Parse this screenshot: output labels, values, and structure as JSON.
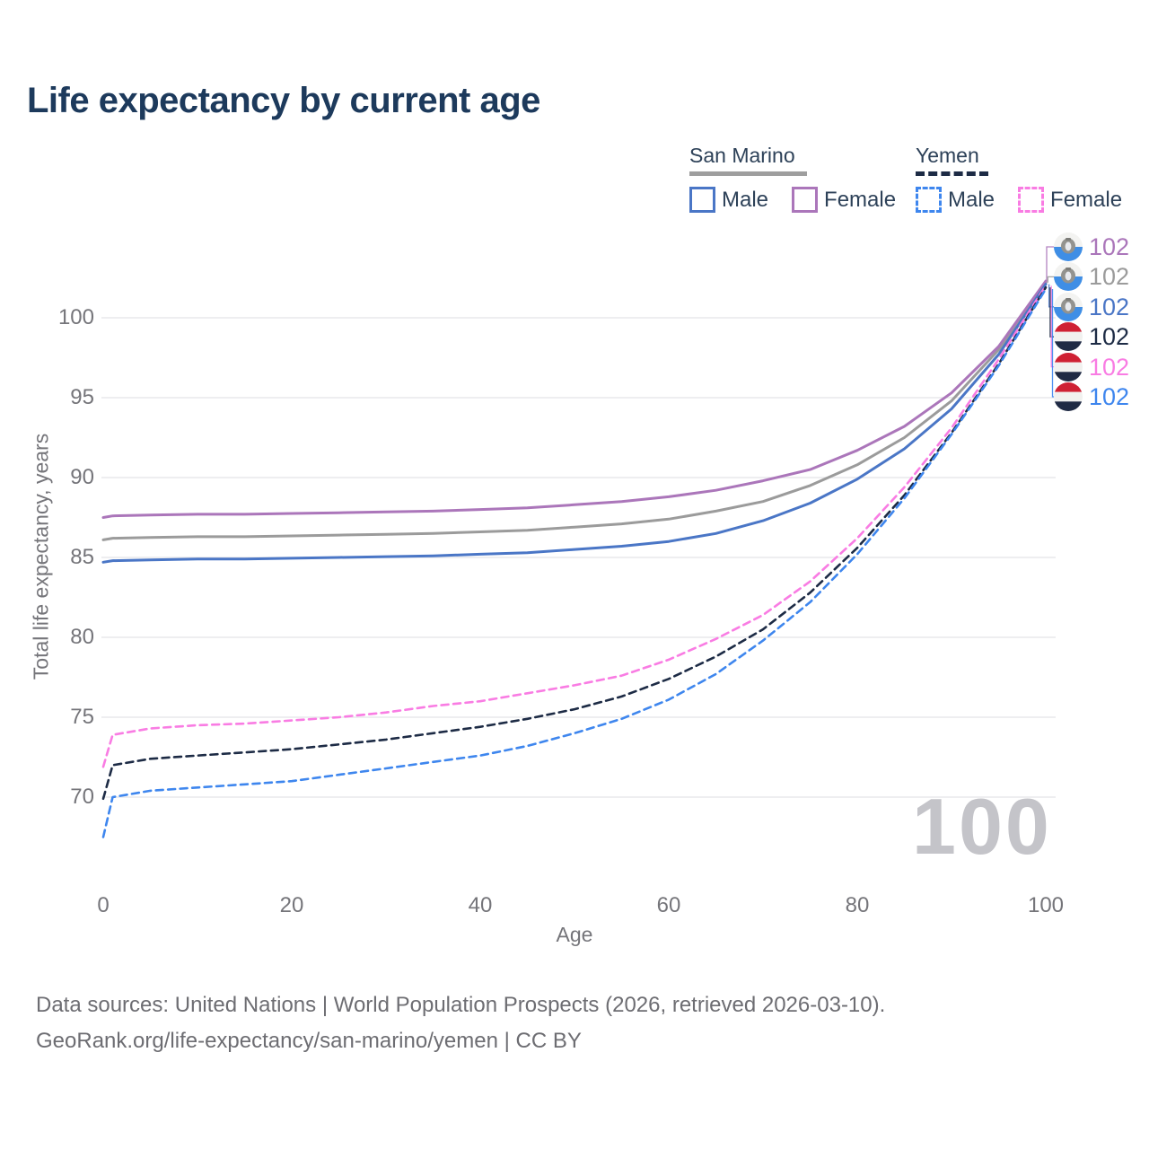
{
  "title": "Life expectancy by current age",
  "watermark": "100",
  "legend": {
    "groups": [
      {
        "country": "San Marino",
        "line_color": "#9e9e9e",
        "line_style": "solid",
        "items": [
          {
            "label": "Male",
            "series_index": 2
          },
          {
            "label": "Female",
            "series_index": 0
          }
        ]
      },
      {
        "country": "Yemen",
        "line_color": "#1d2b45",
        "line_style": "dashed",
        "items": [
          {
            "label": "Male",
            "series_index": 5
          },
          {
            "label": "Female",
            "series_index": 4
          }
        ]
      }
    ]
  },
  "axes": {
    "x": {
      "title": "Age",
      "ticks": [
        "0",
        "20",
        "40",
        "60",
        "80",
        "100"
      ]
    },
    "y": {
      "title": "Total life expectancy, years",
      "ticks": [
        "100",
        "95",
        "90",
        "85",
        "80",
        "75",
        "70"
      ]
    }
  },
  "chart_data": {
    "type": "line",
    "title": "Life expectancy by current age",
    "xlabel": "Age",
    "ylabel": "Total life expectancy, years",
    "x_range": [
      0,
      100
    ],
    "y_gridlines": [
      100,
      95,
      90,
      85,
      80,
      75,
      70
    ],
    "legend_position": "top-right",
    "ages": [
      0,
      1,
      5,
      10,
      15,
      20,
      25,
      30,
      35,
      40,
      45,
      50,
      55,
      60,
      65,
      70,
      75,
      80,
      85,
      90,
      95,
      100
    ],
    "series": [
      {
        "name": "San Marino Female",
        "country": "San Marino",
        "sex": "Female",
        "color": "#ab76ba",
        "dash": false,
        "end_label": "102",
        "values": [
          87.5,
          87.6,
          87.65,
          87.7,
          87.7,
          87.75,
          87.8,
          87.85,
          87.9,
          88.0,
          88.1,
          88.3,
          88.5,
          88.8,
          89.2,
          89.8,
          90.5,
          91.7,
          93.2,
          95.3,
          98.2,
          102.3
        ]
      },
      {
        "name": "San Marino Both sexes",
        "country": "San Marino",
        "sex": "Both",
        "color": "#9b9b9b",
        "dash": false,
        "end_label": "102",
        "values": [
          86.1,
          86.2,
          86.25,
          86.3,
          86.3,
          86.35,
          86.4,
          86.45,
          86.5,
          86.6,
          86.7,
          86.9,
          87.1,
          87.4,
          87.9,
          88.5,
          89.5,
          90.8,
          92.5,
          94.8,
          98.0,
          102.2
        ]
      },
      {
        "name": "San Marino Male",
        "country": "San Marino",
        "sex": "Male",
        "color": "#4a76c6",
        "dash": false,
        "end_label": "102",
        "values": [
          84.7,
          84.8,
          84.85,
          84.9,
          84.9,
          84.95,
          85.0,
          85.05,
          85.1,
          85.2,
          85.3,
          85.5,
          85.7,
          86.0,
          86.5,
          87.3,
          88.4,
          89.9,
          91.8,
          94.3,
          97.7,
          102.1
        ]
      },
      {
        "name": "Yemen Both sexes",
        "country": "Yemen",
        "sex": "Both",
        "color": "#1d2b45",
        "dash": true,
        "end_label": "102",
        "values": [
          69.9,
          72.0,
          72.4,
          72.6,
          72.8,
          73.0,
          73.3,
          73.6,
          74.0,
          74.4,
          74.9,
          75.5,
          76.3,
          77.4,
          78.8,
          80.5,
          82.8,
          85.6,
          88.9,
          92.8,
          97.1,
          101.9
        ]
      },
      {
        "name": "Yemen Female",
        "country": "Yemen",
        "sex": "Female",
        "color": "#f97ce3",
        "dash": true,
        "end_label": "102",
        "values": [
          71.9,
          73.9,
          74.3,
          74.5,
          74.6,
          74.8,
          75.0,
          75.3,
          75.7,
          76.0,
          76.5,
          77.0,
          77.6,
          78.6,
          79.9,
          81.4,
          83.5,
          86.2,
          89.4,
          93.1,
          97.4,
          102.0
        ]
      },
      {
        "name": "Yemen Male",
        "country": "Yemen",
        "sex": "Male",
        "color": "#3e86ee",
        "dash": true,
        "end_label": "102",
        "values": [
          67.5,
          70.0,
          70.4,
          70.6,
          70.8,
          71.0,
          71.4,
          71.8,
          72.2,
          72.6,
          73.2,
          74.0,
          74.9,
          76.1,
          77.7,
          79.8,
          82.2,
          85.2,
          88.7,
          92.7,
          97.0,
          101.8
        ]
      }
    ]
  },
  "footer": {
    "line1": "Data sources: United Nations | World Population Prospects (2026, retrieved 2026-03-10).",
    "line2": "GeoRank.org/life-expectancy/san-marino/yemen | CC BY"
  }
}
